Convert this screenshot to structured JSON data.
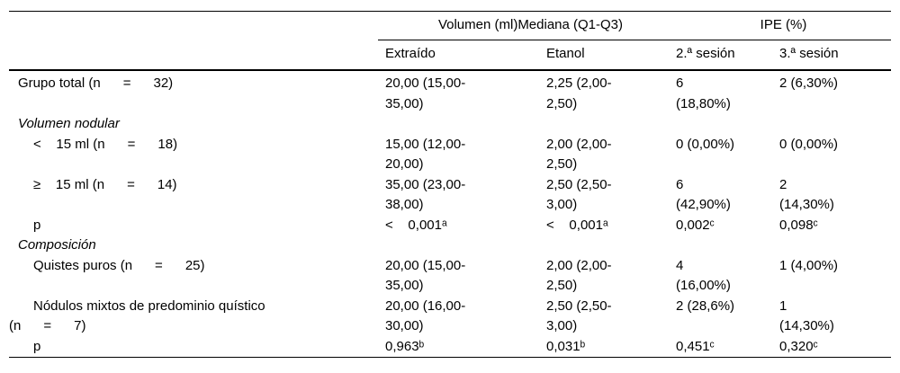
{
  "table": {
    "span_headers": {
      "volumen": "Volumen (ml)Mediana (Q1-Q3)",
      "ipe": "IPE (%)"
    },
    "columns": {
      "extraido": "Extraído",
      "etanol": "Etanol",
      "sesion2": "2.ª sesión",
      "sesion3": "3.ª sesión"
    },
    "rows": [
      {
        "label": "Grupo total (n      =      32)",
        "italic": false,
        "cells": [
          "20,00 (15,00-\n35,00)",
          "2,25 (2,00-\n2,50)",
          "6\n(18,80%)",
          "2 (6,30%)"
        ]
      },
      {
        "label": "Volumen nodular",
        "italic": true,
        "cells": [
          "",
          "",
          "",
          ""
        ]
      },
      {
        "label": "<    15 ml (n      =      18)",
        "italic": false,
        "cells": [
          "15,00 (12,00-\n20,00)",
          "2,00 (2,00-\n2,50)",
          "0 (0,00%)",
          "0 (0,00%)"
        ]
      },
      {
        "label": "≥    15 ml (n      =      14)",
        "italic": false,
        "cells": [
          "35,00 (23,00-\n38,00)",
          "2,50 (2,50-\n3,00)",
          "6\n(42,90%)",
          "2\n(14,30%)"
        ]
      },
      {
        "label": "p",
        "italic": false,
        "cells": [
          "<    0,001ᵃ",
          "<    0,001ᵃ",
          "0,002ᶜ",
          "0,098ᶜ"
        ]
      },
      {
        "label": "Composición",
        "italic": true,
        "cells": [
          "",
          "",
          "",
          ""
        ]
      },
      {
        "label": "Quistes puros (n      =      25)",
        "italic": false,
        "cells": [
          "20,00 (15,00-\n35,00)",
          "2,00 (2,00-\n2,50)",
          "4\n(16,00%)",
          "1 (4,00%)"
        ]
      },
      {
        "label": "Nódulos mixtos de predominio quístico\n(n      =      7)",
        "italic": false,
        "cells": [
          "20,00 (16,00-\n30,00)",
          "2,50 (2,50-\n3,00)",
          "2 (28,6%)",
          "1\n(14,30%)"
        ]
      },
      {
        "label": "p",
        "italic": false,
        "cells": [
          "0,963ᵇ",
          "0,031ᵇ",
          "0,451ᶜ",
          "0,320ᶜ"
        ]
      }
    ]
  }
}
